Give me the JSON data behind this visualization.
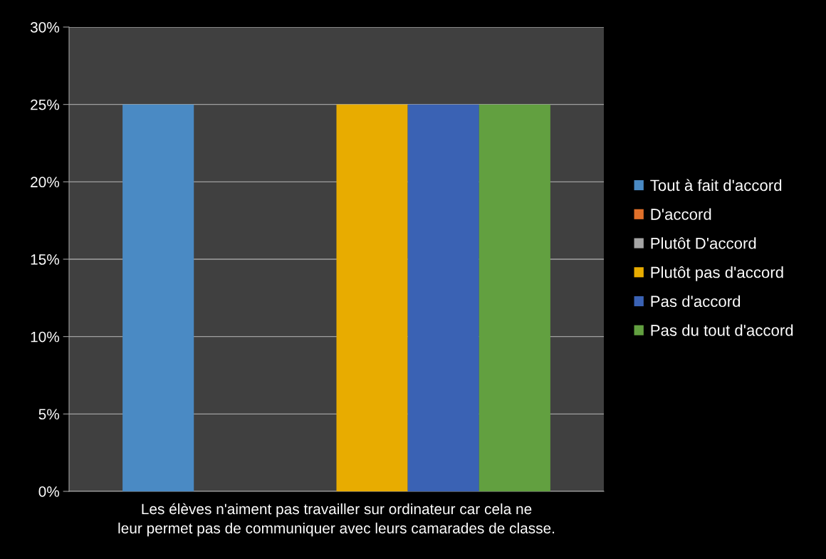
{
  "chart_data": {
    "type": "bar",
    "categories": [
      "Les élèves n'aiment pas travailler sur ordinateur car cela ne leur permet pas de communiquer avec leurs camarades de classe."
    ],
    "series": [
      {
        "name": "Tout à fait d'accord",
        "color": "#4a8ac4",
        "values": [
          25
        ]
      },
      {
        "name": "D'accord",
        "color": "#e0702a",
        "values": [
          0
        ]
      },
      {
        "name": "Plutôt D'accord",
        "color": "#a5a5a5",
        "values": [
          0
        ]
      },
      {
        "name": "Plutôt pas d'accord",
        "color": "#e8ac00",
        "values": [
          25
        ]
      },
      {
        "name": "Pas d'accord",
        "color": "#3a62b4",
        "values": [
          25
        ]
      },
      {
        "name": "Pas du tout d'accord",
        "color": "#62a040",
        "values": [
          25
        ]
      }
    ],
    "ylim": [
      0,
      30
    ],
    "yticks": [
      {
        "value": 0,
        "label": "0%"
      },
      {
        "value": 5,
        "label": "5%"
      },
      {
        "value": 10,
        "label": "10%"
      },
      {
        "value": 15,
        "label": "15%"
      },
      {
        "value": 20,
        "label": "20%"
      },
      {
        "value": 25,
        "label": "25%"
      },
      {
        "value": 30,
        "label": "30%"
      }
    ],
    "grid": "y",
    "legend": "right"
  }
}
